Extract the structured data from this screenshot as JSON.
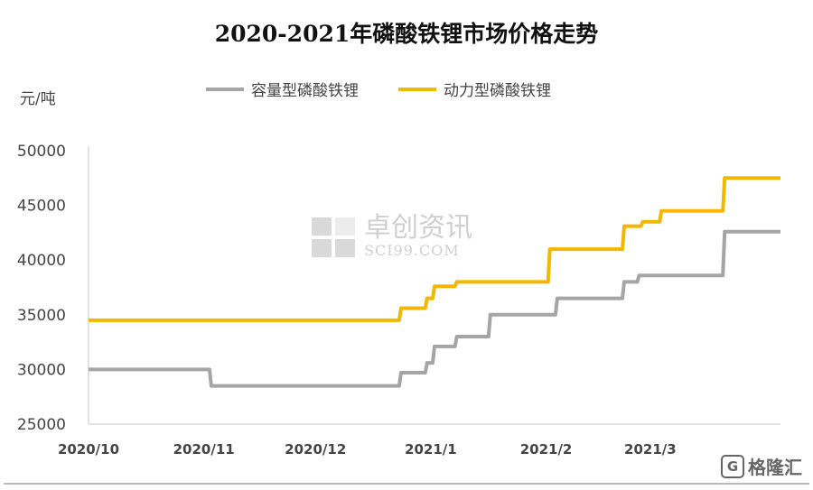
{
  "chart_data": {
    "type": "line",
    "title": "2020-2021年磷酸铁锂市场价格走势",
    "ylabel": "元/吨",
    "xlabel": "",
    "ylim": [
      25000,
      50000
    ],
    "yticks": [
      "50000",
      "45000",
      "40000",
      "35000",
      "30000",
      "25000"
    ],
    "xlim": [
      "2020-10-01",
      "2021-04-05"
    ],
    "xticks": [
      {
        "label": "2020/10",
        "date": "2020-10-01"
      },
      {
        "label": "2020/11",
        "date": "2020-11-01"
      },
      {
        "label": "2020/12",
        "date": "2020-12-01"
      },
      {
        "label": "2021/1",
        "date": "2021-01-01"
      },
      {
        "label": "2021/2",
        "date": "2021-02-01"
      },
      {
        "label": "2021/3",
        "date": "2021-03-01"
      }
    ],
    "grid": false,
    "legend": "top",
    "step": true,
    "series": [
      {
        "name": "容量型磷酸铁锂",
        "color": "#a5a5a5",
        "points": [
          [
            "2020-10-01",
            30000
          ],
          [
            "2020-11-03",
            28500
          ],
          [
            "2020-12-24",
            29700
          ],
          [
            "2020-12-31",
            30600
          ],
          [
            "2021-01-02",
            32100
          ],
          [
            "2021-01-08",
            33000
          ],
          [
            "2021-01-17",
            35000
          ],
          [
            "2021-02-04",
            36500
          ],
          [
            "2021-02-22",
            38000
          ],
          [
            "2021-02-26",
            38600
          ],
          [
            "2021-03-21",
            42600
          ],
          [
            "2021-04-05",
            42600
          ]
        ]
      },
      {
        "name": "动力型磷酸铁锂",
        "color": "#f2b800",
        "points": [
          [
            "2020-10-01",
            34500
          ],
          [
            "2020-12-24",
            35600
          ],
          [
            "2020-12-31",
            36500
          ],
          [
            "2021-01-02",
            37600
          ],
          [
            "2021-01-08",
            38000
          ],
          [
            "2021-02-02",
            41000
          ],
          [
            "2021-02-22",
            43100
          ],
          [
            "2021-02-27",
            43500
          ],
          [
            "2021-03-04",
            44500
          ],
          [
            "2021-03-21",
            47500
          ],
          [
            "2021-04-05",
            47500
          ]
        ]
      }
    ]
  },
  "watermark": {
    "cn": "卓创资讯",
    "en": "SCI99.COM"
  },
  "logo": {
    "text": "格隆汇",
    "mark": "G"
  }
}
